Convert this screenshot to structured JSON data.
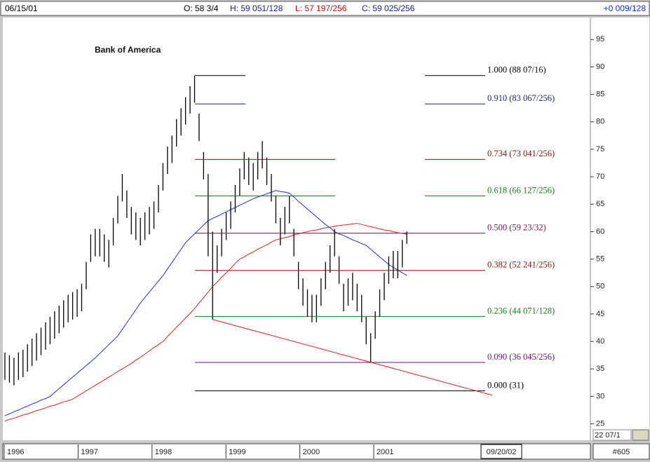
{
  "header": {
    "date": "06/15/01",
    "open": "O: 58 3/4",
    "high": "H: 59 051/128",
    "low": "L: 57 197/256",
    "close": "C: 59 025/256",
    "change": "+0 009/128"
  },
  "footer": {
    "cursor_date": "09/20/02",
    "page": "#605",
    "price_marker": "22 07/1"
  },
  "chart_data": {
    "type": "ohlc",
    "title": "Bank of America",
    "ylim": [
      22,
      99
    ],
    "yticks": [
      25,
      30,
      35,
      40,
      45,
      50,
      55,
      60,
      65,
      70,
      75,
      80,
      85,
      90,
      95
    ],
    "xticks": [
      1996,
      1997,
      1998,
      1999,
      2000,
      2001
    ],
    "bar_color": "#000000",
    "high": [
      38,
      37.5,
      37,
      38,
      38.5,
      39.5,
      40.5,
      41.5,
      42.5,
      43.5,
      44.5,
      45.5,
      46.5,
      47.5,
      48.5,
      49,
      49.5,
      50.5,
      54.5,
      59.5,
      60.5,
      60.5,
      59.5,
      58.5,
      62.5,
      66.5,
      70.5,
      67.5,
      64.5,
      63.5,
      62.5,
      63.5,
      64.5,
      65.5,
      68.5,
      72.5,
      75.5,
      77.5,
      80.5,
      82.5,
      84.5,
      86.5,
      88.4,
      81.5,
      74.5,
      70.5,
      60,
      57.5,
      60.5,
      63.5,
      65.5,
      68.5,
      71.5,
      74.5,
      73.5,
      72.5,
      74.5,
      76.5,
      73.5,
      70.5,
      66.5,
      62.5,
      64.5,
      66.5,
      60.5,
      54.5,
      51.5,
      49.5,
      48.5,
      48.5,
      51.5,
      54.5,
      57.5,
      60.5,
      55.5,
      50.5,
      51.5,
      52.5,
      50.5,
      48.5,
      44.5,
      41.5,
      45.5,
      49.5,
      52.5,
      55.5,
      56.5,
      56.5,
      58.5,
      60
    ],
    "low": [
      33,
      32.5,
      32,
      33,
      33.5,
      34.5,
      35.5,
      36.5,
      37.5,
      38.5,
      39.5,
      40.5,
      41.5,
      42.5,
      43.5,
      44,
      44.5,
      45.5,
      49.5,
      54.5,
      55.5,
      55.5,
      54.5,
      53.5,
      57.5,
      61.5,
      65.5,
      62.5,
      59.5,
      58.5,
      57.5,
      58.5,
      59.5,
      60.5,
      63.5,
      67.5,
      70.5,
      72.5,
      75.5,
      77.5,
      79.5,
      81.5,
      83.5,
      76.5,
      69.5,
      55.5,
      44,
      52.5,
      55.5,
      58.5,
      60.5,
      63.5,
      66.5,
      69.5,
      68.5,
      67.5,
      69.5,
      71.5,
      68.5,
      65.5,
      61.5,
      57.5,
      59.5,
      61.5,
      55.5,
      49.5,
      46.5,
      44.5,
      43.5,
      43.5,
      46.5,
      49.5,
      52.5,
      55.5,
      50.5,
      45.5,
      46.5,
      47.5,
      45.5,
      43.5,
      39.5,
      36.2,
      40.5,
      44.5,
      47.5,
      50.5,
      51.5,
      51.5,
      53.5,
      57.8
    ],
    "series": [
      {
        "color": "#1f2fd0",
        "values": [
          26.5,
          26.8,
          27.2,
          27.5,
          27.9,
          28.2,
          28.6,
          28.9,
          29.3,
          29.6,
          30,
          30.7,
          31.4,
          32.1,
          32.8,
          33.5,
          34.2,
          34.9,
          35.6,
          36.3,
          37,
          37.8,
          38.6,
          39.4,
          40.2,
          41,
          42.2,
          43.4,
          44.6,
          45.8,
          47,
          48,
          49,
          50,
          51,
          52,
          53.2,
          54.4,
          55.6,
          56.8,
          58,
          58.8,
          59.6,
          60.4,
          61.2,
          62,
          62.4,
          62.8,
          63.2,
          63.6,
          64,
          64.4,
          64.8,
          65.2,
          65.6,
          66,
          66.3,
          66.6,
          66.9,
          67.2,
          67.5,
          67.3,
          67.2,
          67,
          66.3,
          65.5,
          64.8,
          64.1,
          63.4,
          62.7,
          62,
          61.3,
          60.7,
          60,
          59.6,
          59.3,
          58.9,
          58.5,
          58.2,
          57.8,
          57.5,
          56.8,
          56.1,
          55.4,
          54.7,
          54,
          53.5,
          53,
          52.5,
          52
        ]
      },
      {
        "color": "#e02020",
        "values": [
          25.5,
          25.8,
          26,
          26.3,
          26.6,
          26.8,
          27.1,
          27.4,
          27.6,
          27.9,
          28.2,
          28.4,
          28.7,
          29,
          29.2,
          29.5,
          30,
          30.5,
          31,
          31.5,
          32,
          32.5,
          33,
          33.5,
          34,
          34.5,
          35,
          35.5,
          36,
          36.6,
          37.1,
          37.7,
          38.3,
          38.9,
          39.4,
          40,
          40.9,
          41.7,
          42.6,
          43.4,
          44.3,
          45.1,
          46,
          47,
          48,
          49,
          50,
          50.8,
          51.7,
          52.5,
          53.3,
          54.2,
          55,
          55.4,
          55.9,
          56.3,
          56.8,
          57.2,
          57.6,
          58.1,
          58.5,
          58.7,
          58.9,
          59.1,
          59.4,
          59.6,
          59.8,
          60,
          60.2,
          60.3,
          60.5,
          60.7,
          60.8,
          61,
          61.1,
          61.2,
          61.3,
          61.4,
          61.5,
          61.3,
          61.1,
          60.9,
          60.7,
          60.5,
          60.3,
          60.2,
          60,
          59.8,
          59.7,
          59.5
        ]
      }
    ],
    "trendline_color": "#e02020",
    "levels": [
      {
        "value": 88.4375,
        "label": "1.000 (88 07/16)",
        "color": "#000000"
      },
      {
        "value": 83.26,
        "label": "0.910 (83 067/256)",
        "color": "#1a237e"
      },
      {
        "value": 73.16,
        "label": "0.734 (73 041/256)",
        "color": "#8b1010"
      },
      {
        "value": 66.5,
        "label": "0.618 (66 127/256)",
        "color": "#0a8a0a"
      },
      {
        "value": 59.72,
        "label": "0.500 (59 23/32)",
        "color": "#7a1060"
      },
      {
        "value": 52.94,
        "label": "0.382 (52 241/256)",
        "color": "#8b1010"
      },
      {
        "value": 44.55,
        "label": "0.236 (44 071/128)",
        "color": "#0a8a0a"
      },
      {
        "value": 36.18,
        "label": "0.090 (36 045/256)",
        "color": "#6a1070"
      },
      {
        "value": 31,
        "label": "0.000 (31)",
        "color": "#000000"
      }
    ]
  }
}
